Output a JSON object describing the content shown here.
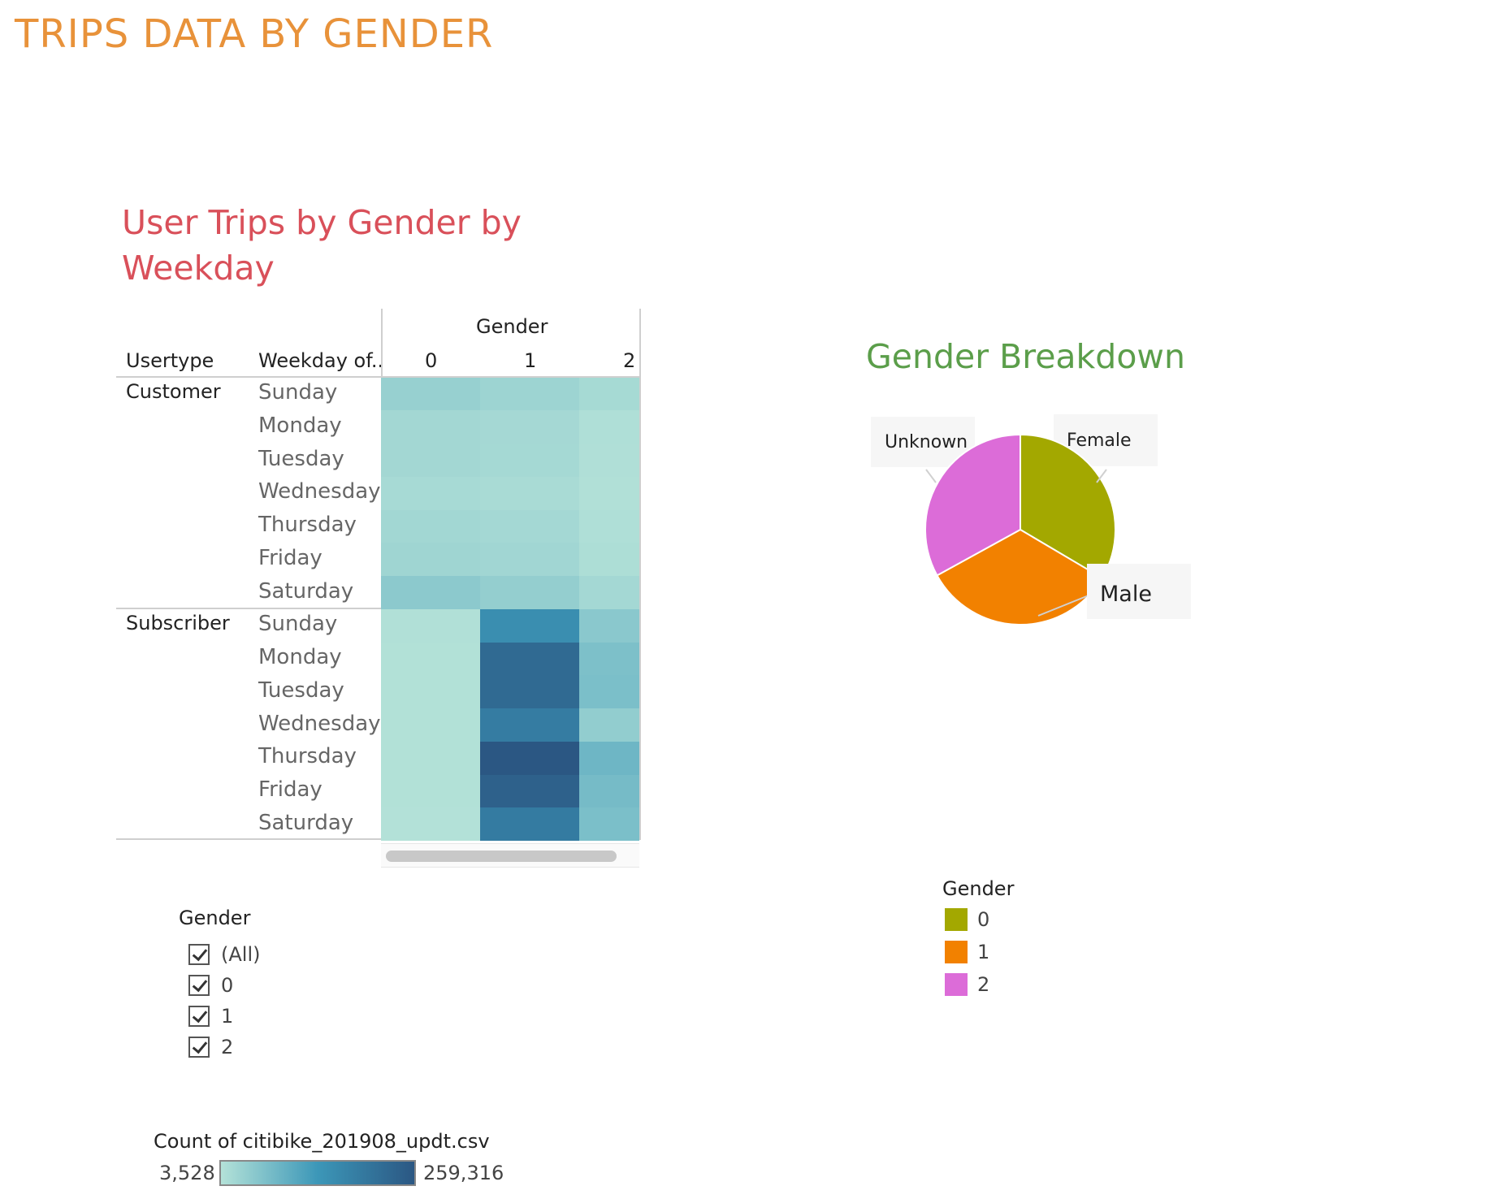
{
  "dashboard_title": "TRIPS DATA BY GENDER",
  "heatmap": {
    "title": "User Trips by Gender by Weekday",
    "col_group_header": "Gender",
    "row_headers": [
      "Usertype",
      "Weekday of.."
    ],
    "columns": [
      "0",
      "1",
      "2"
    ],
    "groups": [
      {
        "label": "Customer",
        "rows": [
          "Sunday",
          "Monday",
          "Tuesday",
          "Wednesday",
          "Thursday",
          "Friday",
          "Saturday"
        ]
      },
      {
        "label": "Subscriber",
        "rows": [
          "Sunday",
          "Monday",
          "Tuesday",
          "Wednesday",
          "Thursday",
          "Friday",
          "Saturday"
        ]
      }
    ]
  },
  "chart_data": [
    {
      "type": "heatmap",
      "title": "User Trips by Gender by Weekday",
      "x_header": "Gender",
      "x": [
        "0",
        "1",
        "2"
      ],
      "y_levels": [
        "Usertype",
        "Weekday of.."
      ],
      "y": [
        [
          "Customer",
          "Sunday"
        ],
        [
          "Customer",
          "Monday"
        ],
        [
          "Customer",
          "Tuesday"
        ],
        [
          "Customer",
          "Wednesday"
        ],
        [
          "Customer",
          "Thursday"
        ],
        [
          "Customer",
          "Friday"
        ],
        [
          "Customer",
          "Saturday"
        ],
        [
          "Subscriber",
          "Sunday"
        ],
        [
          "Subscriber",
          "Monday"
        ],
        [
          "Subscriber",
          "Tuesday"
        ],
        [
          "Subscriber",
          "Wednesday"
        ],
        [
          "Subscriber",
          "Thursday"
        ],
        [
          "Subscriber",
          "Friday"
        ],
        [
          "Subscriber",
          "Saturday"
        ]
      ],
      "values": [
        [
          34000,
          28000,
          18000
        ],
        [
          22000,
          20000,
          9000
        ],
        [
          22000,
          19000,
          8000
        ],
        [
          17000,
          15000,
          7000
        ],
        [
          23000,
          21000,
          9000
        ],
        [
          26000,
          24000,
          11000
        ],
        [
          46000,
          38000,
          21000
        ],
        [
          7000,
          150000,
          48000
        ],
        [
          6000,
          222000,
          62000
        ],
        [
          6000,
          222000,
          64000
        ],
        [
          6000,
          185000,
          40000
        ],
        [
          6000,
          259316,
          78000
        ],
        [
          6000,
          240000,
          70000
        ],
        [
          5000,
          188000,
          64000
        ]
      ],
      "color_legend": {
        "title": "Count of citibike_201908_updt.csv",
        "min": 3528,
        "max": 259316,
        "min_label": "3,528",
        "max_label": "259,316",
        "colors": [
          "#b4e2d8",
          "#3c97b8",
          "#2b5783"
        ]
      }
    },
    {
      "type": "pie",
      "title": "Gender Breakdown",
      "categories": [
        "0",
        "1",
        "2"
      ],
      "labels": [
        "Female",
        "Male",
        "Unknown"
      ],
      "values": [
        0.335,
        0.335,
        0.33
      ],
      "colors": [
        "#a3a800",
        "#f28100",
        "#dc6cd8"
      ],
      "legend": {
        "title": "Gender",
        "entries": [
          "0",
          "1",
          "2"
        ]
      }
    }
  ],
  "filter": {
    "title": "Gender",
    "options": [
      "(All)",
      "0",
      "1",
      "2"
    ]
  },
  "pie_labels": {
    "unknown": "Unknown",
    "female": "Female",
    "male": "Male"
  },
  "pie_legend": {
    "title": "Gender",
    "items": [
      "0",
      "1",
      "2"
    ]
  },
  "gradient_legend": {
    "title": "Count of citibike_201908_updt.csv",
    "min_label": "3,528",
    "max_label": "259,316"
  }
}
